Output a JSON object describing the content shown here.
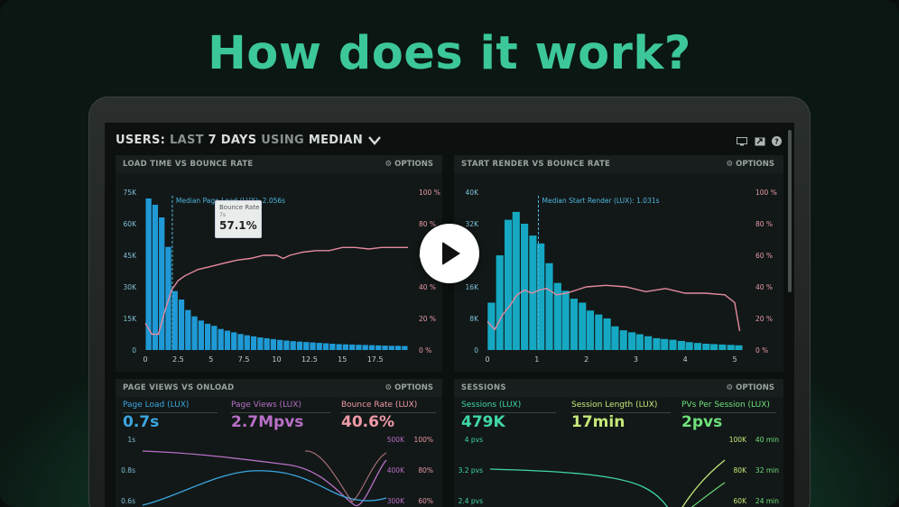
{
  "headline": "How does it work?",
  "dashboard": {
    "title_users": "USERS:",
    "title_last": "LAST",
    "title_days": "7 DAYS",
    "title_using": "USING",
    "title_median": "MEDIAN",
    "icons": [
      "monitor-icon",
      "expand-icon",
      "help-icon"
    ]
  },
  "panels": {
    "load": {
      "title": "LOAD TIME VS BOUNCE RATE",
      "options": "OPTIONS",
      "median_label": "Median Page Load (LUX): 2.056s",
      "tooltip_title": "Bounce Rate",
      "tooltip_sub": "7s",
      "tooltip_value": "57.1%",
      "legend": [
        "Page Load (LUX)",
        "Bounce Rate"
      ]
    },
    "render": {
      "title": "START RENDER VS BOUNCE RATE",
      "options": "OPTIONS",
      "median_label": "Median Start Render (LUX): 1.031s",
      "legend": [
        "Start Render (LUX)",
        "Bounce Rate"
      ]
    },
    "pageviews": {
      "title": "PAGE VIEWS VS ONLOAD",
      "options": "OPTIONS",
      "metrics": [
        {
          "label": "Page Load (LUX)",
          "value": "0.7s",
          "color": "#3aa6e0"
        },
        {
          "label": "Page Views (LUX)",
          "value": "2.7Mpvs",
          "color": "#b86fc6"
        },
        {
          "label": "Bounce Rate (LUX)",
          "value": "40.6%",
          "color": "#ef9aa6"
        }
      ],
      "left_ticks": [
        "1s",
        "0.8s",
        "0.6s"
      ],
      "right_ticks_a": [
        "500K",
        "400K",
        "300K"
      ],
      "right_ticks_b": [
        "100%",
        "80%",
        "60%"
      ]
    },
    "sessions": {
      "title": "SESSIONS",
      "options": "OPTIONS",
      "metrics": [
        {
          "label": "Sessions (LUX)",
          "value": "479K",
          "color": "#3fd6a8"
        },
        {
          "label": "Session Length (LUX)",
          "value": "17min",
          "color": "#c5e87a"
        },
        {
          "label": "PVs Per Session (LUX)",
          "value": "2pvs",
          "color": "#6fe07a"
        }
      ],
      "left_ticks": [
        "4 pvs",
        "3.2 pvs",
        "2.4 pvs"
      ],
      "right_ticks_a": [
        "100K",
        "80K",
        "60K"
      ],
      "right_ticks_b": [
        "40 min",
        "32 min",
        "24 min"
      ]
    }
  },
  "chart_data": [
    {
      "type": "bar",
      "title": "LOAD TIME VS BOUNCE RATE",
      "x_ticks": [
        "0",
        "2.5",
        "5",
        "7.5",
        "10",
        "12.5",
        "15",
        "17.5"
      ],
      "y_ticks": [
        "75K",
        "60K",
        "45K",
        "30K",
        "15K",
        "0"
      ],
      "y2_ticks": [
        "100 %",
        "80 %",
        "60 %",
        "40 %",
        "20 %",
        "0 %"
      ],
      "ylim": [
        0,
        75000
      ],
      "y2lim": [
        0,
        100
      ],
      "xlim": [
        0,
        20
      ],
      "bar_width": 0.5,
      "bar_x": [
        0.25,
        0.75,
        1.25,
        1.75,
        2.25,
        2.75,
        3.25,
        3.75,
        4.25,
        4.75,
        5.25,
        5.75,
        6.25,
        6.75,
        7.25,
        7.75,
        8.25,
        8.75,
        9.25,
        9.75,
        10.25,
        10.75,
        11.25,
        11.75,
        12.25,
        12.75,
        13.25,
        13.75,
        14.25,
        14.75,
        15.25,
        15.75,
        16.25,
        16.75,
        17.25,
        17.75,
        18.25,
        18.75,
        19.25,
        19.75
      ],
      "bar_values": [
        72000,
        69000,
        63000,
        49000,
        28000,
        24000,
        19000,
        16000,
        14000,
        12500,
        11500,
        10000,
        9200,
        8400,
        7600,
        7000,
        6500,
        6000,
        5600,
        5200,
        4800,
        4500,
        4200,
        4000,
        3800,
        3600,
        3400,
        3200,
        3000,
        2800,
        2700,
        2600,
        2500,
        2400,
        2300,
        2200,
        2100,
        2000,
        2000,
        1900
      ],
      "series": [
        {
          "name": "Page Load (LUX)",
          "color": "#1f9ad6"
        },
        {
          "name": "Bounce Rate",
          "color": "#e58aa0",
          "x": [
            0,
            0.5,
            1,
            1.5,
            2,
            2.5,
            3,
            4,
            5,
            6,
            7,
            8,
            9,
            10,
            10.5,
            11,
            12,
            13,
            14,
            15,
            16,
            17,
            18,
            19,
            20
          ],
          "values": [
            17,
            10,
            10,
            25,
            38,
            44,
            47,
            51,
            53,
            55,
            57,
            58,
            60,
            60,
            58,
            60,
            62,
            63,
            63,
            65,
            65,
            64,
            65,
            65,
            65
          ]
        }
      ],
      "median": 2.056
    },
    {
      "type": "bar",
      "title": "START RENDER VS BOUNCE RATE",
      "x_ticks": [
        "0",
        "1",
        "2",
        "3",
        "4",
        "5"
      ],
      "y_ticks": [
        "40K",
        "32K",
        "24K",
        "16K",
        "8K",
        "0"
      ],
      "y2_ticks": [
        "100 %",
        "80 %",
        "60 %",
        "40 %",
        "20 %",
        "0 %"
      ],
      "ylim": [
        0,
        40000
      ],
      "y2lim": [
        0,
        100
      ],
      "xlim": [
        0,
        5.2
      ],
      "bar_width": 0.1667,
      "bar_x": [
        0.08,
        0.25,
        0.42,
        0.58,
        0.75,
        0.92,
        1.08,
        1.25,
        1.42,
        1.58,
        1.75,
        1.92,
        2.08,
        2.25,
        2.42,
        2.58,
        2.75,
        2.92,
        3.08,
        3.25,
        3.42,
        3.58,
        3.75,
        3.92,
        4.08,
        4.25,
        4.42,
        4.58,
        4.75,
        4.92,
        5.08
      ],
      "bar_values": [
        12000,
        24000,
        33000,
        35000,
        32000,
        29000,
        27000,
        22000,
        17000,
        15000,
        13000,
        12000,
        10000,
        9000,
        8000,
        6000,
        5000,
        4500,
        4000,
        3500,
        3000,
        2800,
        2600,
        2300,
        2000,
        1800,
        1600,
        1500,
        1400,
        1300,
        1200
      ],
      "series": [
        {
          "name": "Start Render (LUX)",
          "color": "#16a8c2"
        },
        {
          "name": "Bounce Rate",
          "color": "#e58aa0",
          "x": [
            0,
            0.15,
            0.3,
            0.45,
            0.6,
            0.75,
            0.9,
            1.05,
            1.2,
            1.4,
            1.6,
            1.8,
            2,
            2.4,
            2.8,
            3.2,
            3.6,
            4,
            4.4,
            4.8,
            5,
            5.1
          ],
          "values": [
            18,
            13,
            22,
            28,
            35,
            38,
            36,
            38,
            39,
            35,
            36,
            38,
            40,
            41,
            40,
            37,
            39,
            36,
            36,
            35,
            30,
            12
          ]
        }
      ],
      "median": 1.031
    }
  ]
}
